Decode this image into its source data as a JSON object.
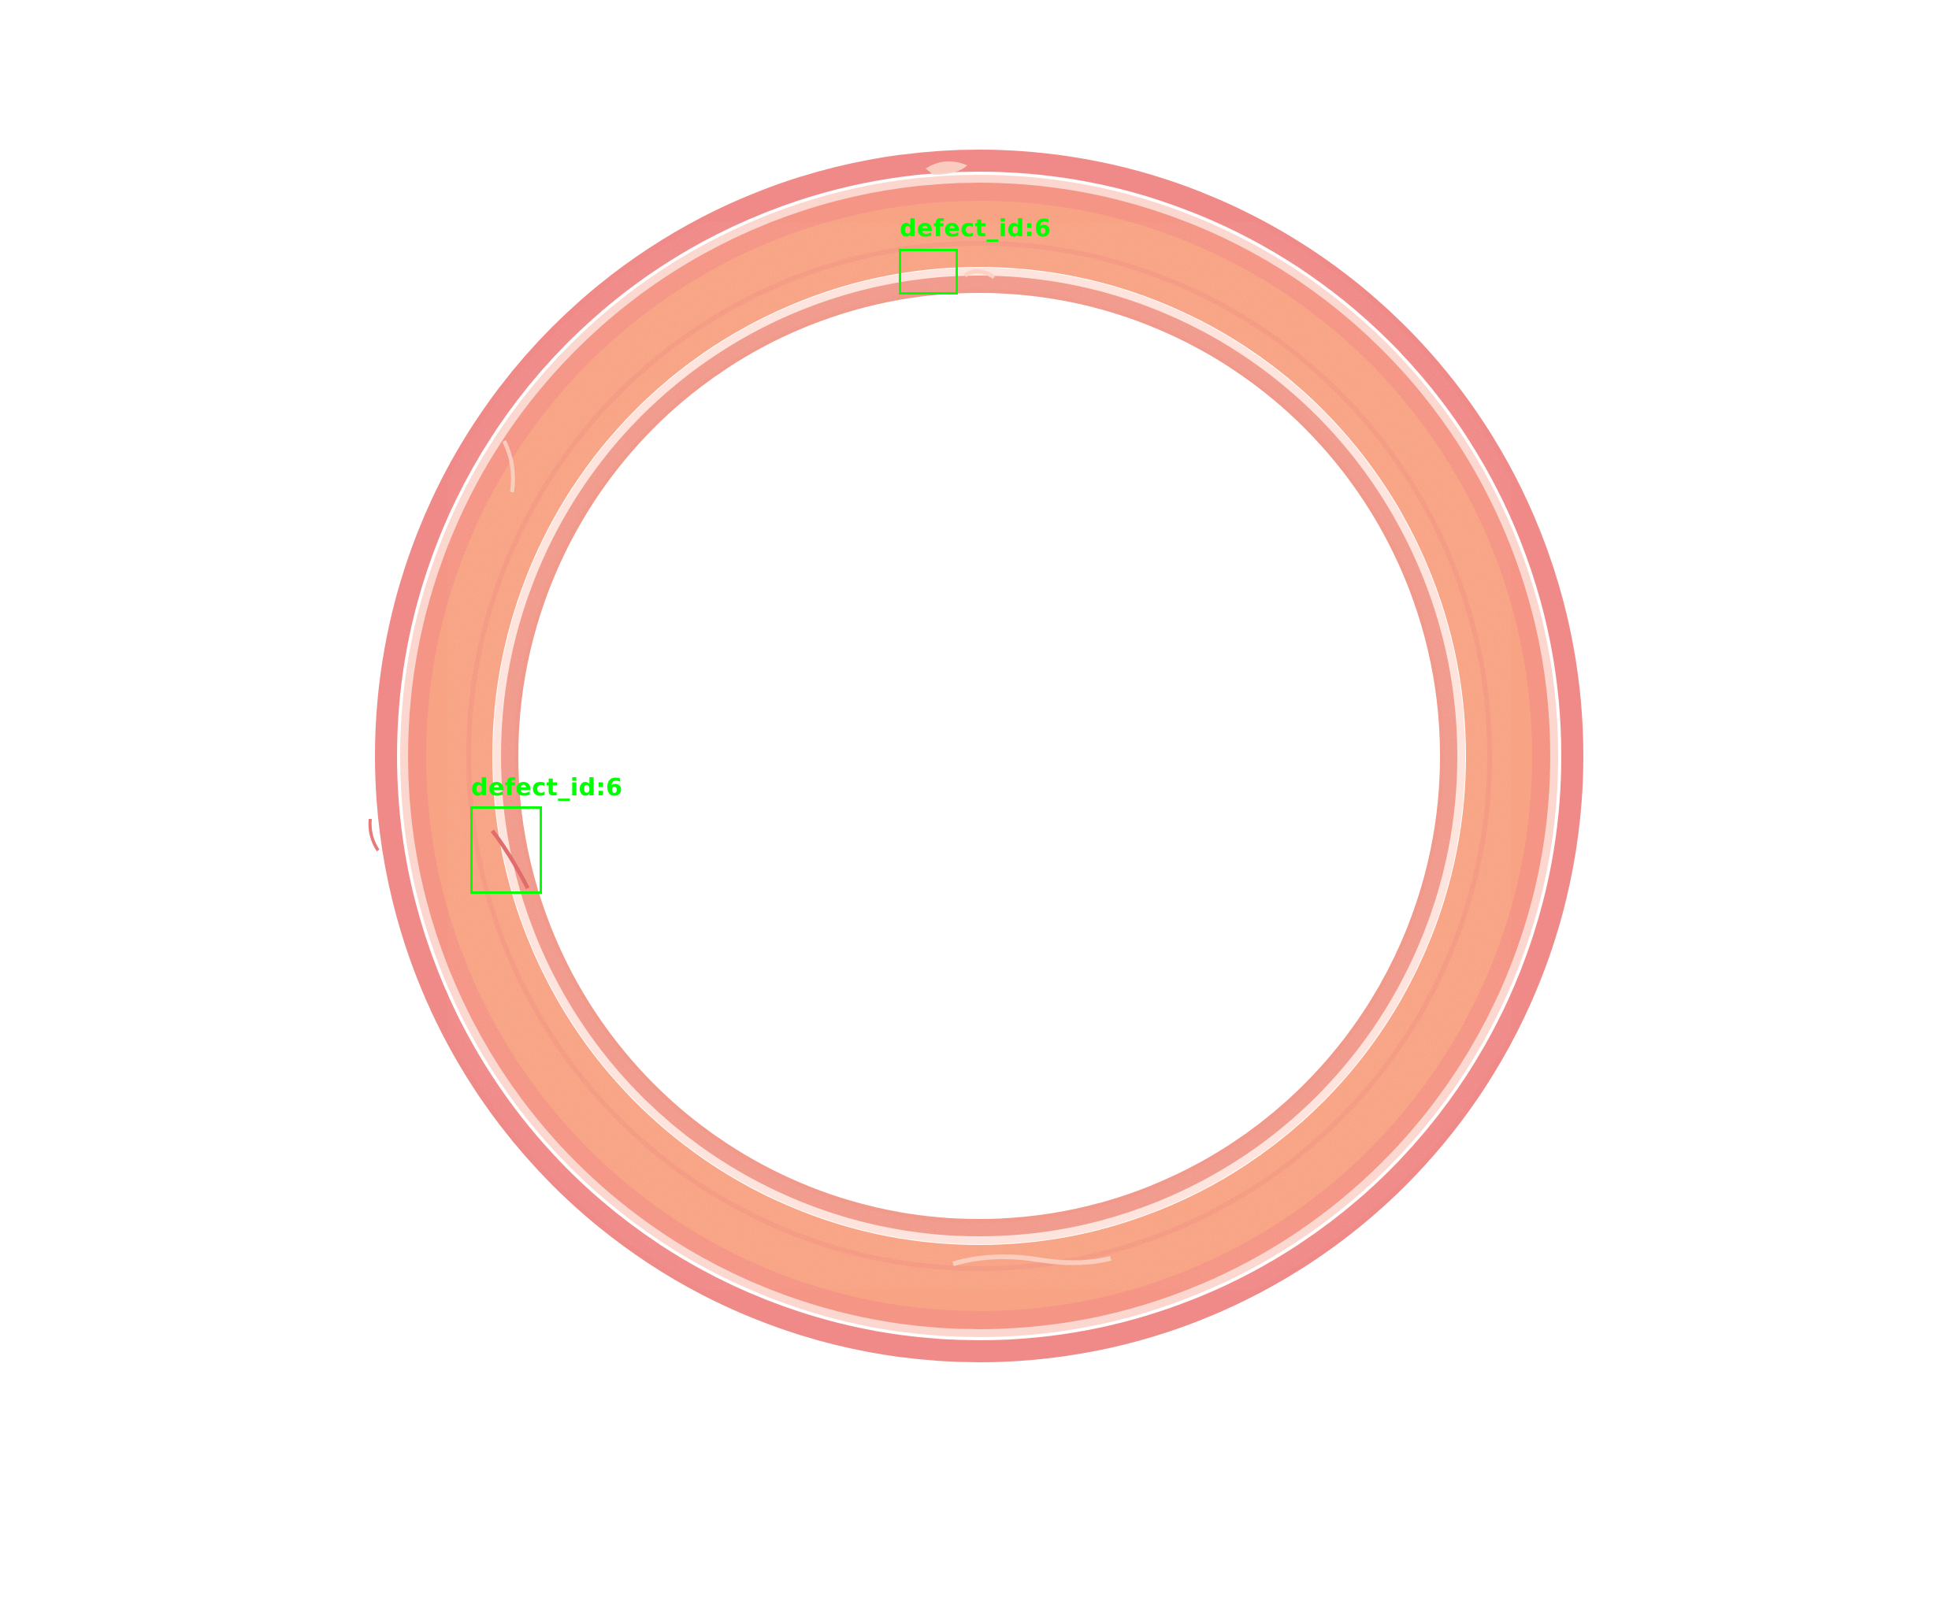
{
  "image": {
    "subject": "pink-orange o-ring seal on white background",
    "background_color": "#ffffff",
    "ring_colors": {
      "outer_rim": "#f08a88",
      "band": "#f7a184",
      "highlight": "#fde3dc",
      "inner_rim": "#f19a8c"
    }
  },
  "annotations": {
    "box_color": "#00ff00",
    "items": [
      {
        "label": "defect_id:6"
      },
      {
        "label": "defect_id:6"
      }
    ]
  }
}
